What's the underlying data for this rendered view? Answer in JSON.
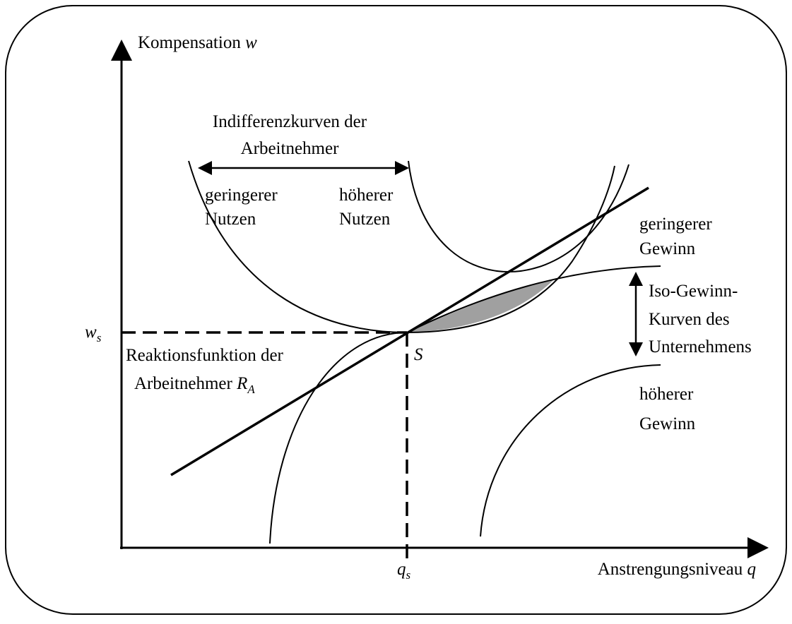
{
  "axes": {
    "y_label": {
      "text": "Kompensation",
      "symbol": "w"
    },
    "x_label": {
      "text": "Anstrengungsniveau",
      "symbol": "q"
    }
  },
  "ws": {
    "symbol": "w",
    "subscript": "s"
  },
  "qs": {
    "symbol": "q",
    "subscript": "s"
  },
  "point": "S",
  "indifference": {
    "title": [
      "Indifferenzkurven der",
      "Arbeitnehmer"
    ],
    "lower": [
      "geringerer",
      "Nutzen"
    ],
    "higher": [
      "höherer",
      "Nutzen"
    ]
  },
  "isoprofit": {
    "title": [
      "Iso-Gewinn-",
      "Kurven des",
      "Unternehmens"
    ],
    "lower": [
      "geringerer",
      "Gewinn"
    ],
    "higher": [
      "höherer",
      "Gewinn"
    ]
  },
  "reaction": {
    "lines": [
      "Reaktionsfunktion der",
      "Arbeitnehmer"
    ],
    "symbol": "R",
    "subscript": "A"
  }
}
